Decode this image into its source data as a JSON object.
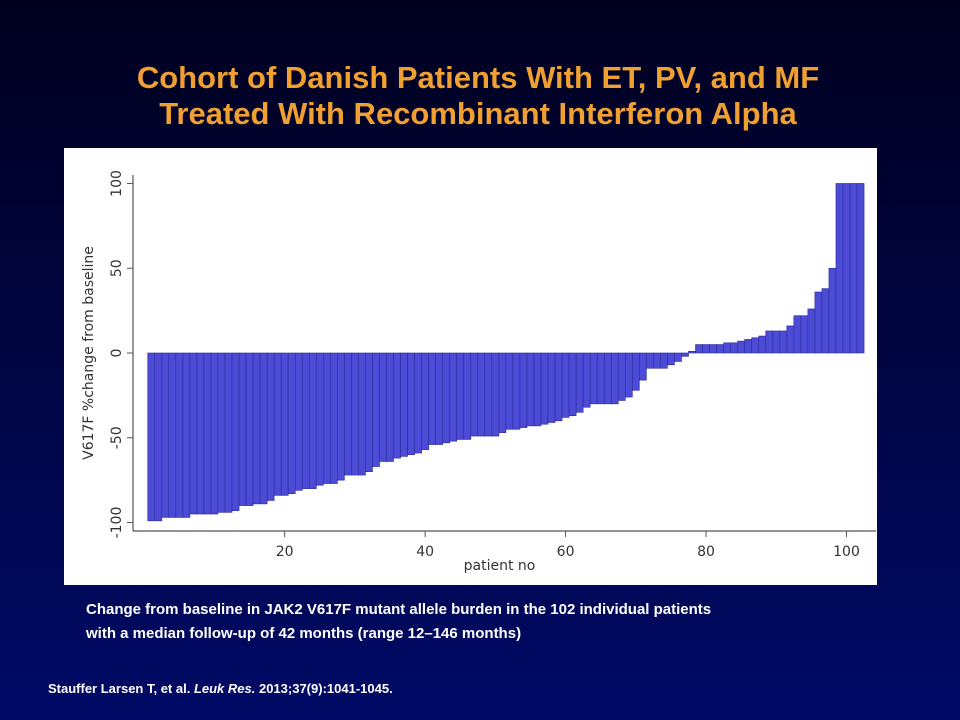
{
  "title": [
    "Cohort of Danish Patients With ET, PV, and MF",
    "Treated With Recombinant Interferon Alpha"
  ],
  "caption": [
    "Change from baseline in JAK2 V617F mutant allele burden in the 102 individual patients",
    "with a median follow-up of 42 months (range 12–146 months)"
  ],
  "citation": {
    "authors": "Stauffer Larsen T, et al. ",
    "journal": "Leuk Res.",
    "details": " 2013;37(9):1041-1045."
  },
  "chart_data": {
    "type": "bar",
    "x": [
      1,
      2,
      3,
      4,
      5,
      6,
      7,
      8,
      9,
      10,
      11,
      12,
      13,
      14,
      15,
      16,
      17,
      18,
      19,
      20,
      21,
      22,
      23,
      24,
      25,
      26,
      27,
      28,
      29,
      30,
      31,
      32,
      33,
      34,
      35,
      36,
      37,
      38,
      39,
      40,
      41,
      42,
      43,
      44,
      45,
      46,
      47,
      48,
      49,
      50,
      51,
      52,
      53,
      54,
      55,
      56,
      57,
      58,
      59,
      60,
      61,
      62,
      63,
      64,
      65,
      66,
      67,
      68,
      69,
      70,
      71,
      72,
      73,
      74,
      75,
      76,
      77,
      78,
      79,
      80,
      81,
      82,
      83,
      84,
      85,
      86,
      87,
      88,
      89,
      90,
      91,
      92,
      93,
      94,
      95,
      96,
      97,
      98,
      99,
      100,
      101,
      102
    ],
    "values": [
      -99,
      -99,
      -97,
      -97,
      -97,
      -97,
      -95,
      -95,
      -95,
      -95,
      -94,
      -94,
      -93,
      -90,
      -90,
      -89,
      -89,
      -87,
      -84,
      -84,
      -83,
      -81,
      -80,
      -80,
      -78,
      -77,
      -77,
      -75,
      -72,
      -72,
      -72,
      -70,
      -67,
      -64,
      -64,
      -62,
      -61,
      -60,
      -59,
      -57,
      -54,
      -54,
      -53,
      -52,
      -51,
      -51,
      -49,
      -49,
      -49,
      -49,
      -47,
      -45,
      -45,
      -44,
      -43,
      -43,
      -42,
      -41,
      -40,
      -38,
      -37,
      -35,
      -32,
      -30,
      -30,
      -30,
      -30,
      -28,
      -26,
      -22,
      -16,
      -9,
      -9,
      -9,
      -7,
      -5,
      -2,
      1,
      5,
      5,
      5,
      5,
      6,
      6,
      7,
      8,
      9,
      10,
      13,
      13,
      13,
      16,
      22,
      22,
      26,
      36,
      38,
      50,
      100,
      100,
      100,
      100
    ],
    "color": "#4b4bd6",
    "x_label": "patient no",
    "y_label": "V617F %change from baseline",
    "xlim": [
      -1.6,
      104.2
    ],
    "xticks": [
      20,
      40,
      60,
      80,
      100
    ],
    "ylim": [
      -105,
      105
    ],
    "yticks": [
      -100,
      -50,
      0,
      50,
      100
    ]
  }
}
